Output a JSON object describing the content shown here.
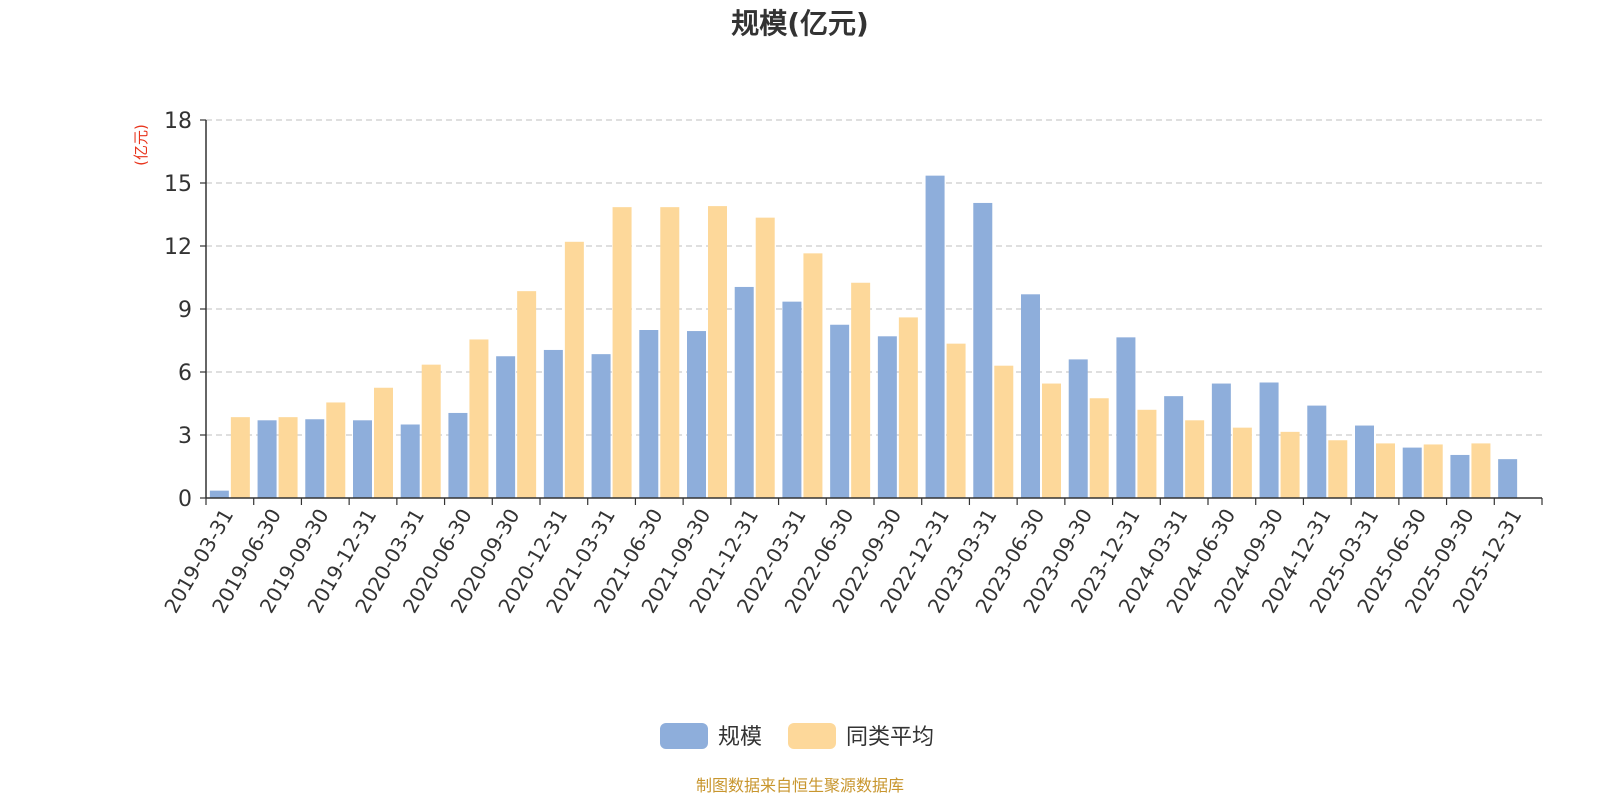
{
  "chart_data": {
    "type": "bar",
    "title": "规模(亿元)",
    "ylabel": "(亿元)",
    "ylim": [
      0,
      18
    ],
    "yticks": [
      0,
      3,
      6,
      9,
      12,
      15,
      18
    ],
    "grid": true,
    "legend_position": "bottom-center",
    "categories": [
      "2019-03-31",
      "2019-06-30",
      "2019-09-30",
      "2019-12-31",
      "2020-03-31",
      "2020-06-30",
      "2020-09-30",
      "2020-12-31",
      "2021-03-31",
      "2021-06-30",
      "2021-09-30",
      "2021-12-31",
      "2022-03-31",
      "2022-06-30",
      "2022-09-30",
      "2022-12-31",
      "2023-03-31",
      "2023-06-30",
      "2023-09-30",
      "2023-12-31",
      "2024-03-31",
      "2024-06-30",
      "2024-09-30",
      "2024-12-31",
      "2025-03-31",
      "2025-06-30",
      "2025-09-30",
      "2025-12-31"
    ],
    "series": [
      {
        "name": "规模",
        "color": "#8eaedb",
        "values": [
          0.35,
          3.7,
          3.75,
          3.7,
          3.5,
          4.05,
          6.75,
          7.05,
          6.85,
          8.0,
          7.95,
          10.05,
          9.35,
          8.25,
          7.7,
          15.35,
          14.05,
          9.7,
          6.6,
          7.65,
          4.85,
          5.45,
          5.5,
          4.4,
          3.45,
          2.4,
          2.05,
          1.85
        ]
      },
      {
        "name": "同类平均",
        "color": "#fdd89a",
        "values": [
          3.85,
          3.85,
          4.55,
          5.25,
          6.35,
          7.55,
          9.85,
          12.2,
          13.85,
          13.85,
          13.9,
          13.35,
          11.65,
          10.25,
          8.6,
          7.35,
          6.3,
          5.45,
          4.75,
          4.2,
          3.7,
          3.35,
          3.15,
          2.75,
          2.6,
          2.55,
          2.6,
          null
        ]
      }
    ]
  },
  "footer": {
    "source_text": "制图数据来自恒生聚源数据库"
  },
  "colors": {
    "title": "#333333",
    "axis_label": "#e8341c",
    "tick_text": "#333333",
    "grid": "#cccccc",
    "footer": "#c8962e"
  }
}
